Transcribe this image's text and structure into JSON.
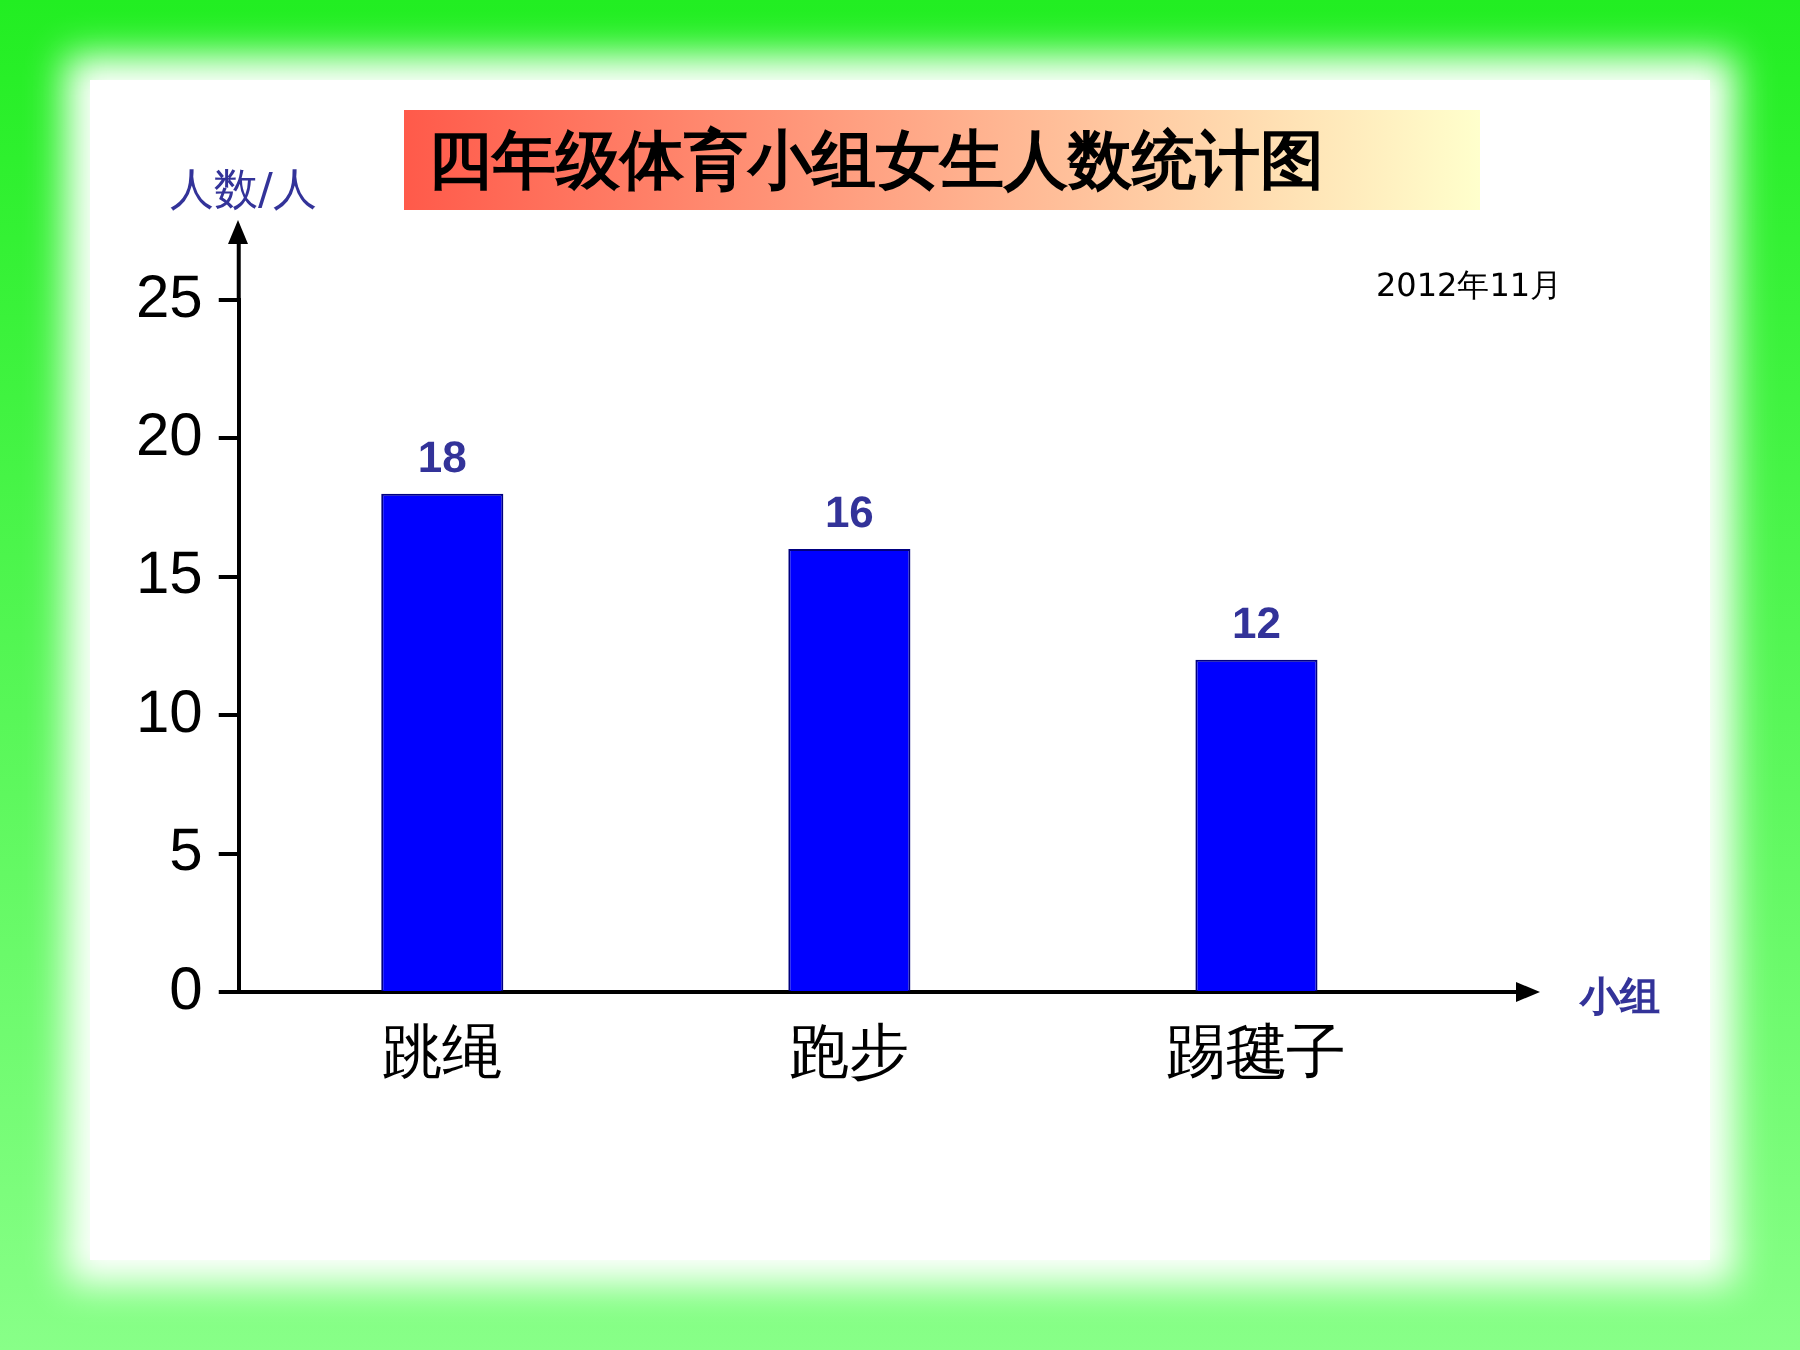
{
  "chart_data": {
    "type": "bar",
    "title": "四年级体育小组女生人数统计图",
    "xlabel": "小组",
    "ylabel": "人数/人",
    "annotations": [
      "2012年11月"
    ],
    "categories": [
      "跳绳",
      "跑步",
      "踢毽子"
    ],
    "values": [
      18,
      16,
      12
    ],
    "color": "#0000ff",
    "ylim": [
      0,
      25
    ],
    "yticks": [
      0,
      5,
      10,
      15,
      20,
      25
    ],
    "grid": false,
    "legend": false,
    "data_labels": true
  }
}
